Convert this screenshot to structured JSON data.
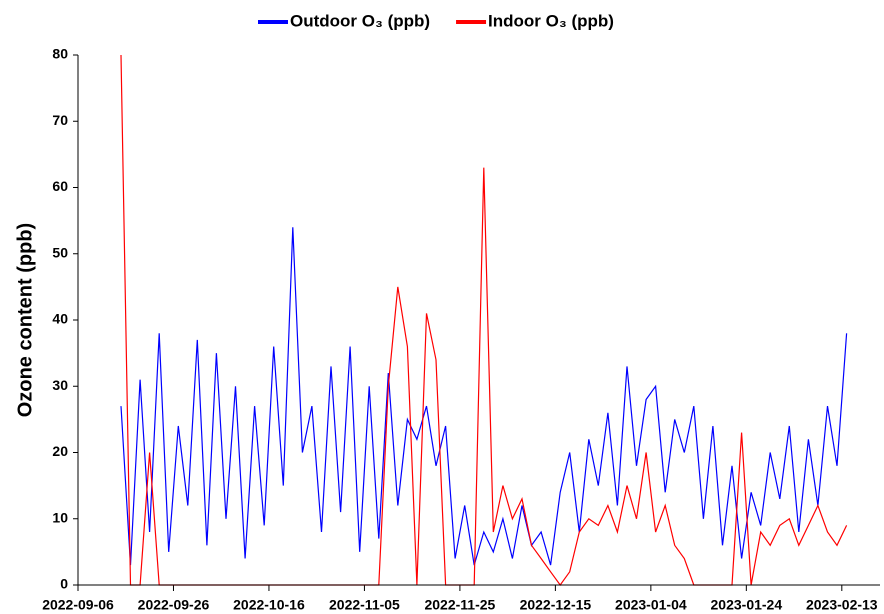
{
  "chart_data": {
    "type": "line",
    "y_label": "Ozone content (ppb)",
    "x": [
      "2022-09-15",
      "2022-09-17",
      "2022-09-19",
      "2022-09-21",
      "2022-09-23",
      "2022-09-25",
      "2022-09-27",
      "2022-09-29",
      "2022-10-01",
      "2022-10-03",
      "2022-10-05",
      "2022-10-07",
      "2022-10-09",
      "2022-10-11",
      "2022-10-13",
      "2022-10-15",
      "2022-10-17",
      "2022-10-19",
      "2022-10-21",
      "2022-10-23",
      "2022-10-25",
      "2022-10-27",
      "2022-10-29",
      "2022-10-31",
      "2022-11-02",
      "2022-11-04",
      "2022-11-06",
      "2022-11-08",
      "2022-11-10",
      "2022-11-12",
      "2022-11-14",
      "2022-11-16",
      "2022-11-18",
      "2022-11-20",
      "2022-11-22",
      "2022-11-24",
      "2022-11-26",
      "2022-11-28",
      "2022-11-30",
      "2022-12-02",
      "2022-12-04",
      "2022-12-06",
      "2022-12-08",
      "2022-12-10",
      "2022-12-12",
      "2022-12-14",
      "2022-12-16",
      "2022-12-18",
      "2022-12-20",
      "2022-12-22",
      "2022-12-24",
      "2022-12-26",
      "2022-12-28",
      "2022-12-30",
      "2023-01-01",
      "2023-01-03",
      "2023-01-05",
      "2023-01-07",
      "2023-01-09",
      "2023-01-11",
      "2023-01-13",
      "2023-01-15",
      "2023-01-17",
      "2023-01-19",
      "2023-01-21",
      "2023-01-23",
      "2023-01-25",
      "2023-01-27",
      "2023-01-29",
      "2023-01-31",
      "2023-02-02",
      "2023-02-04",
      "2023-02-06",
      "2023-02-08",
      "2023-02-10",
      "2023-02-12",
      "2023-02-14"
    ],
    "series": [
      {
        "name": "Outdoor O₃ (ppb)",
        "color": "#0000ff",
        "values": [
          27,
          3,
          31,
          8,
          38,
          5,
          24,
          12,
          37,
          6,
          35,
          10,
          30,
          4,
          27,
          9,
          36,
          15,
          54,
          20,
          27,
          8,
          33,
          11,
          36,
          5,
          30,
          7,
          32,
          12,
          25,
          22,
          27,
          18,
          24,
          4,
          12,
          3,
          8,
          5,
          10,
          4,
          12,
          6,
          8,
          3,
          14,
          20,
          8,
          22,
          15,
          26,
          12,
          33,
          18,
          28,
          30,
          14,
          25,
          20,
          27,
          10,
          24,
          6,
          18,
          4,
          14,
          9,
          20,
          13,
          24,
          8,
          22,
          12,
          27,
          18,
          38
        ]
      },
      {
        "name": "Indoor O₃ (ppb)",
        "color": "#ff0000",
        "values": [
          80,
          0,
          0,
          20,
          0,
          0,
          0,
          0,
          0,
          0,
          0,
          0,
          0,
          0,
          0,
          0,
          0,
          0,
          0,
          0,
          0,
          0,
          0,
          0,
          0,
          0,
          0,
          0,
          30,
          45,
          36,
          0,
          41,
          34,
          0,
          0,
          0,
          0,
          63,
          8,
          15,
          10,
          13,
          6,
          4,
          2,
          0,
          2,
          8,
          10,
          9,
          12,
          8,
          15,
          10,
          20,
          8,
          12,
          6,
          4,
          0,
          0,
          0,
          0,
          0,
          23,
          0,
          8,
          6,
          9,
          10,
          6,
          9,
          12,
          8,
          6,
          9
        ]
      }
    ],
    "xlim": [
      "2022-09-06",
      "2023-02-21"
    ],
    "xticks": [
      "2022-09-06",
      "2022-09-26",
      "2022-10-16",
      "2022-11-05",
      "2022-11-25",
      "2022-12-15",
      "2023-01-04",
      "2023-01-24",
      "2023-02-13"
    ],
    "ylim": [
      0,
      80
    ],
    "yticks": [
      0,
      10,
      20,
      30,
      40,
      50,
      60,
      70,
      80
    ],
    "legend": "top"
  }
}
